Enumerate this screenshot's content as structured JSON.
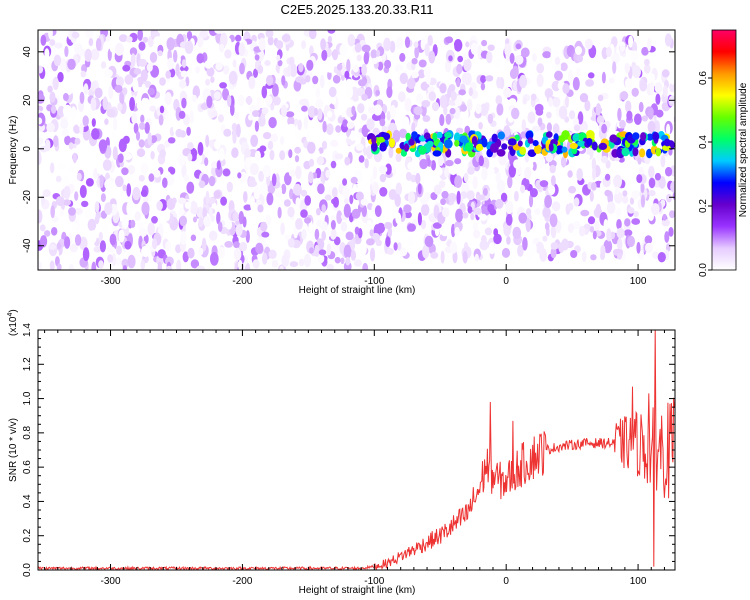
{
  "title": "C2E5.2025.133.20.33.R11",
  "chart_data": [
    {
      "type": "heatmap",
      "xlabel": "Height of straight line (km)",
      "ylabel": "Frequency (Hz)",
      "xlim": [
        -355,
        128
      ],
      "ylim": [
        -50,
        49
      ],
      "x_ticks": [
        -300,
        -200,
        -100,
        0,
        100
      ],
      "x_tick_labels": [
        "-300",
        "-200",
        "-100",
        "0",
        "100"
      ],
      "y_ticks": [
        -40,
        -20,
        0,
        20,
        40
      ],
      "y_tick_labels": [
        "-40",
        "-20",
        "0",
        "20",
        "40"
      ],
      "colorbar": {
        "label": "Normalized spectral amplitude",
        "range": [
          0,
          0.75
        ],
        "ticks": [
          0,
          0.2,
          0.4,
          0.6
        ],
        "tick_labels": [
          "0.0",
          "0.2",
          "0.4",
          "0.6"
        ],
        "colors": [
          "#ffffff",
          "#e6ccff",
          "#9933ff",
          "#6600cc",
          "#0000ff",
          "#00ccff",
          "#00ff66",
          "#66ff00",
          "#ffff00",
          "#ff9900",
          "#ff0000",
          "#ff0066"
        ]
      },
      "regions": [
        {
          "x_range": [
            -355,
            -103
          ],
          "frequency_range": [
            -50,
            49
          ],
          "amplitude_range": [
            0.0,
            0.12
          ],
          "description_level": "noise"
        },
        {
          "x_range": [
            -103,
            128
          ],
          "frequency_range": [
            -45,
            45
          ],
          "amplitude_range": [
            0.0,
            0.12
          ],
          "description_level": "noise"
        },
        {
          "x_range": [
            -103,
            128
          ],
          "frequency_range": [
            -2,
            6
          ],
          "amplitude_range": [
            0.2,
            0.6
          ],
          "description_level": "signal band"
        }
      ],
      "signal_band_center_hz": 2
    },
    {
      "type": "line",
      "xlabel": "Height of straight line (km)",
      "ylabel": "SNR (10 * v/v)",
      "y_multiplier_label": "(x10^4)",
      "xlim": [
        -355,
        128
      ],
      "ylim": [
        0,
        1.4
      ],
      "x_ticks": [
        -300,
        -200,
        -100,
        0,
        100
      ],
      "x_tick_labels": [
        "-300",
        "-200",
        "-100",
        "0",
        "100"
      ],
      "y_ticks": [
        0,
        0.2,
        0.4,
        0.6,
        0.8,
        1.0,
        1.2,
        1.4
      ],
      "y_tick_labels": [
        "0.0",
        "0.2",
        "0.4",
        "0.6",
        "0.8",
        "1.0",
        "1.2",
        "1.4"
      ],
      "line_color": "#ee3333",
      "series": [
        {
          "x": [
            -355,
            -300,
            -250,
            -200,
            -150,
            -110,
            -100,
            -90,
            -80,
            -70,
            -60,
            -50,
            -40,
            -30,
            -25,
            -20,
            -15,
            -10,
            -5,
            0,
            10,
            20,
            30,
            40,
            50,
            60,
            70,
            80,
            90,
            100,
            105,
            110,
            115,
            120,
            128
          ],
          "values": [
            0.01,
            0.01,
            0.01,
            0.01,
            0.01,
            0.01,
            0.02,
            0.04,
            0.08,
            0.12,
            0.16,
            0.2,
            0.26,
            0.32,
            0.4,
            0.48,
            0.62,
            0.55,
            0.52,
            0.52,
            0.6,
            0.66,
            0.7,
            0.72,
            0.73,
            0.74,
            0.74,
            0.74,
            0.74,
            0.74,
            0.72,
            0.7,
            0.72,
            0.7,
            0.7
          ]
        }
      ],
      "spikes": [
        {
          "x": -12,
          "value": 0.98
        },
        {
          "x": 5,
          "value": 0.87
        },
        {
          "x": 96,
          "value": 1.07
        },
        {
          "x": 108,
          "value": 1.03
        },
        {
          "x": 113,
          "value": 1.42
        },
        {
          "x": 112,
          "value": 0.02
        }
      ]
    }
  ]
}
